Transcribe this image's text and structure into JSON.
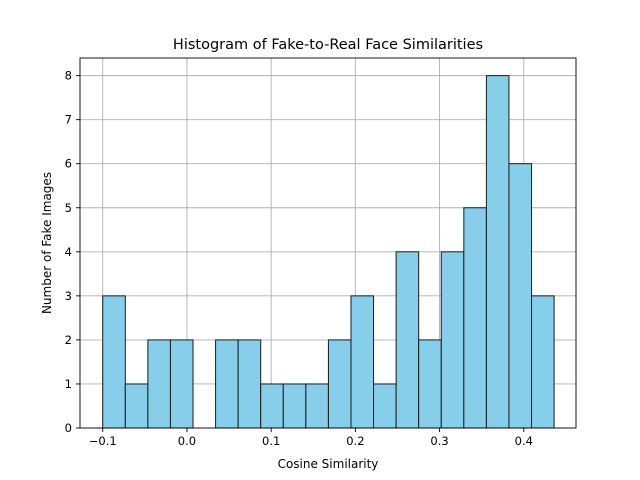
{
  "chart_data": {
    "type": "bar",
    "title": "Histogram of Fake-to-Real Face Similarities",
    "xlabel": "Cosine Similarity",
    "ylabel": "Number of Fake Images",
    "xlim": [
      -0.127,
      0.462
    ],
    "ylim": [
      0,
      8.4
    ],
    "grid": true,
    "bar_color": "#87ceeb",
    "edge_color": "#1a1a1a",
    "bin_start": -0.1,
    "bin_width": 0.0268,
    "counts": [
      3,
      1,
      2,
      2,
      0,
      2,
      2,
      1,
      1,
      1,
      2,
      3,
      1,
      4,
      2,
      4,
      5,
      8,
      6,
      3
    ],
    "xticks": [
      -0.1,
      0.0,
      0.1,
      0.2,
      0.3,
      0.4
    ],
    "xtick_labels": [
      "−0.1",
      "0.0",
      "0.1",
      "0.2",
      "0.3",
      "0.4"
    ],
    "yticks": [
      0,
      1,
      2,
      3,
      4,
      5,
      6,
      7,
      8
    ],
    "ytick_labels": [
      "0",
      "1",
      "2",
      "3",
      "4",
      "5",
      "6",
      "7",
      "8"
    ]
  }
}
